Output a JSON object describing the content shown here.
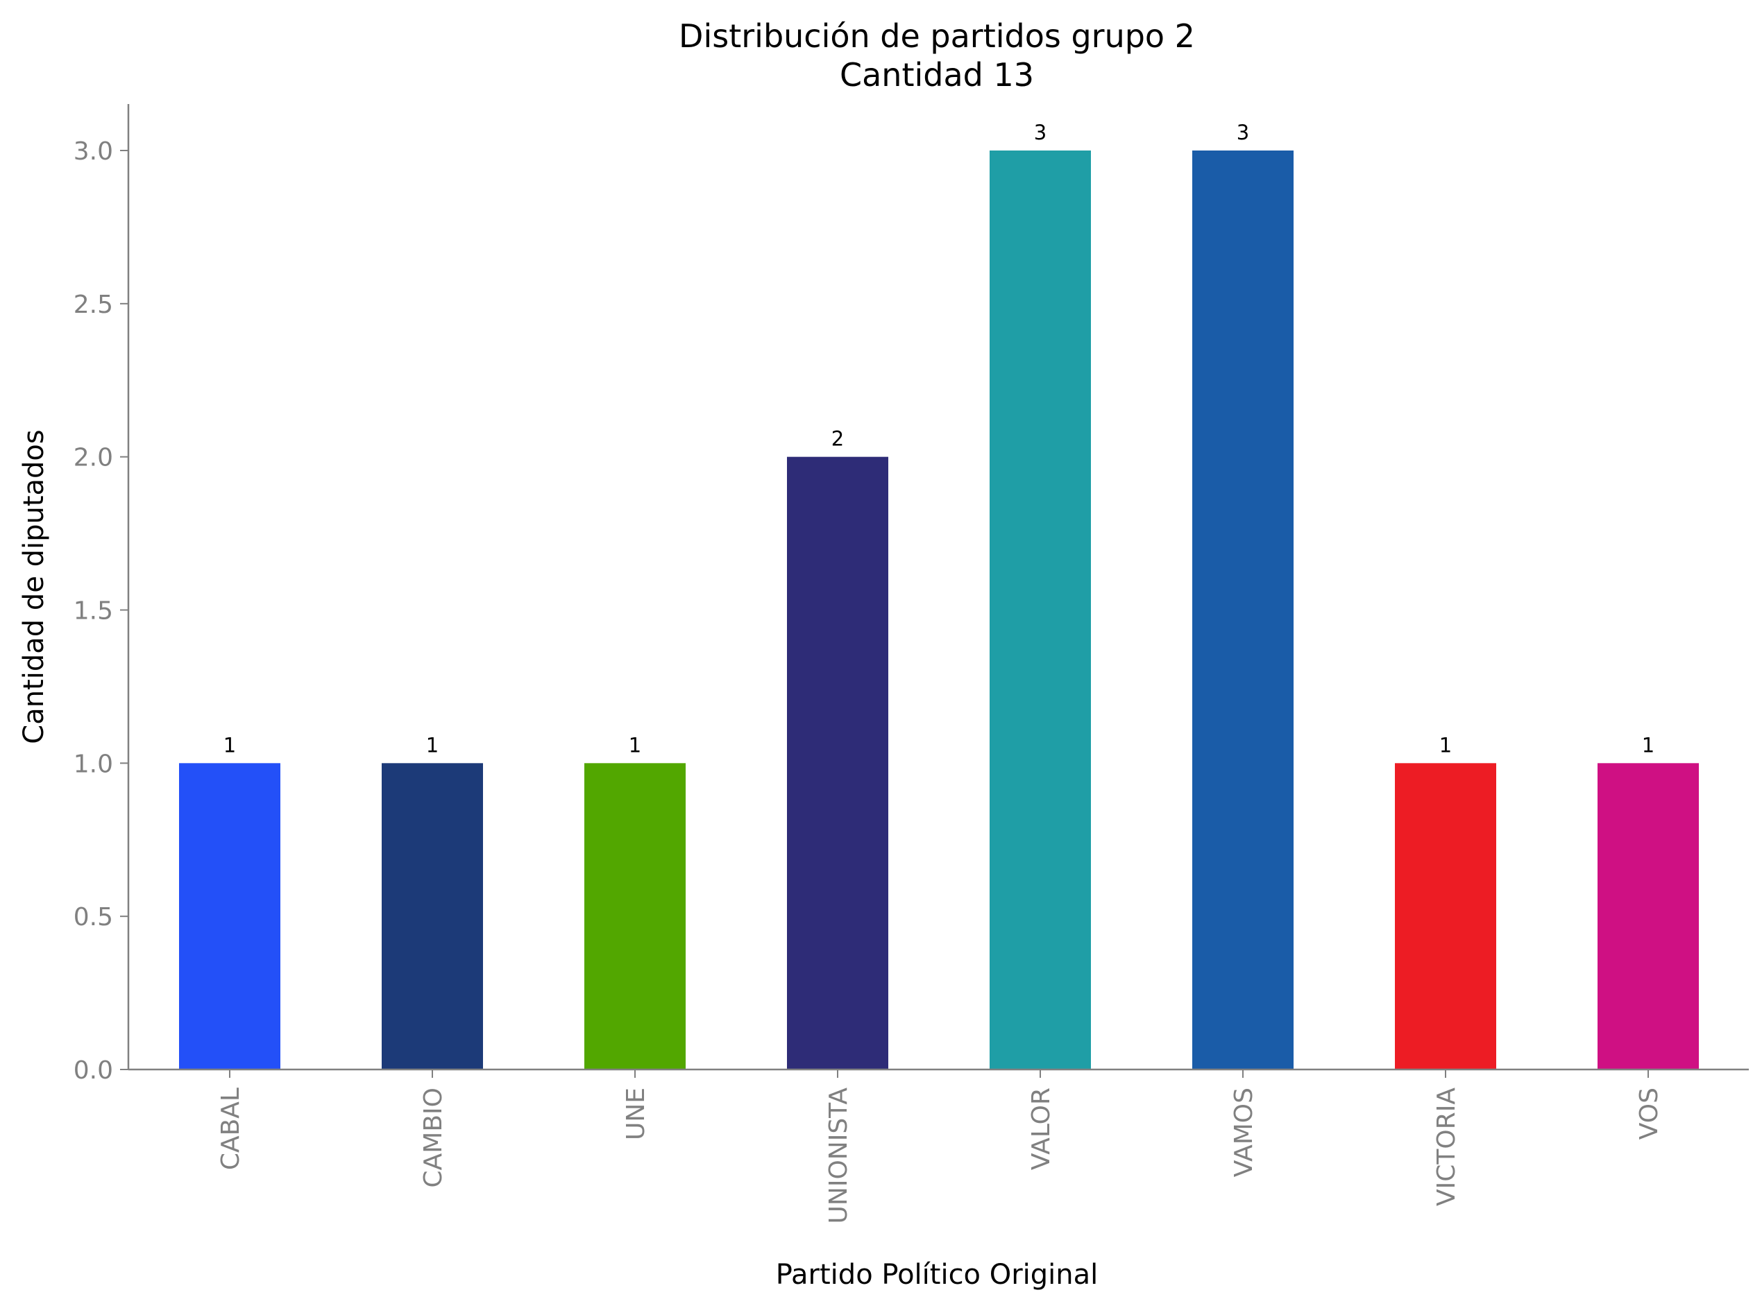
{
  "chart_data": {
    "type": "bar",
    "title": [
      "Distribución de partidos grupo 2",
      "Cantidad 13"
    ],
    "xlabel": "Partido Político Original",
    "ylabel": "Cantidad de diputados",
    "categories": [
      "CABAL",
      "CAMBIO",
      "UNE",
      "UNIONISTA",
      "VALOR",
      "VAMOS",
      "VICTORIA",
      "VOS"
    ],
    "values": [
      1,
      1,
      1,
      2,
      3,
      3,
      1,
      1
    ],
    "data_labels": [
      "1",
      "1",
      "1",
      "2",
      "3",
      "3",
      "1",
      "1"
    ],
    "colors": [
      "#2350f8",
      "#1c3a78",
      "#52a700",
      "#2e2c77",
      "#1f9ea6",
      "#1a5ca8",
      "#ed1c24",
      "#cf1083"
    ],
    "yticks": [
      0.0,
      0.5,
      1.0,
      1.5,
      2.0,
      2.5,
      3.0
    ],
    "ytick_labels": [
      "0.0",
      "0.5",
      "1.0",
      "1.5",
      "2.0",
      "2.5",
      "3.0"
    ],
    "ylim": [
      0,
      3.15
    ],
    "grid": false,
    "legend": "none"
  }
}
